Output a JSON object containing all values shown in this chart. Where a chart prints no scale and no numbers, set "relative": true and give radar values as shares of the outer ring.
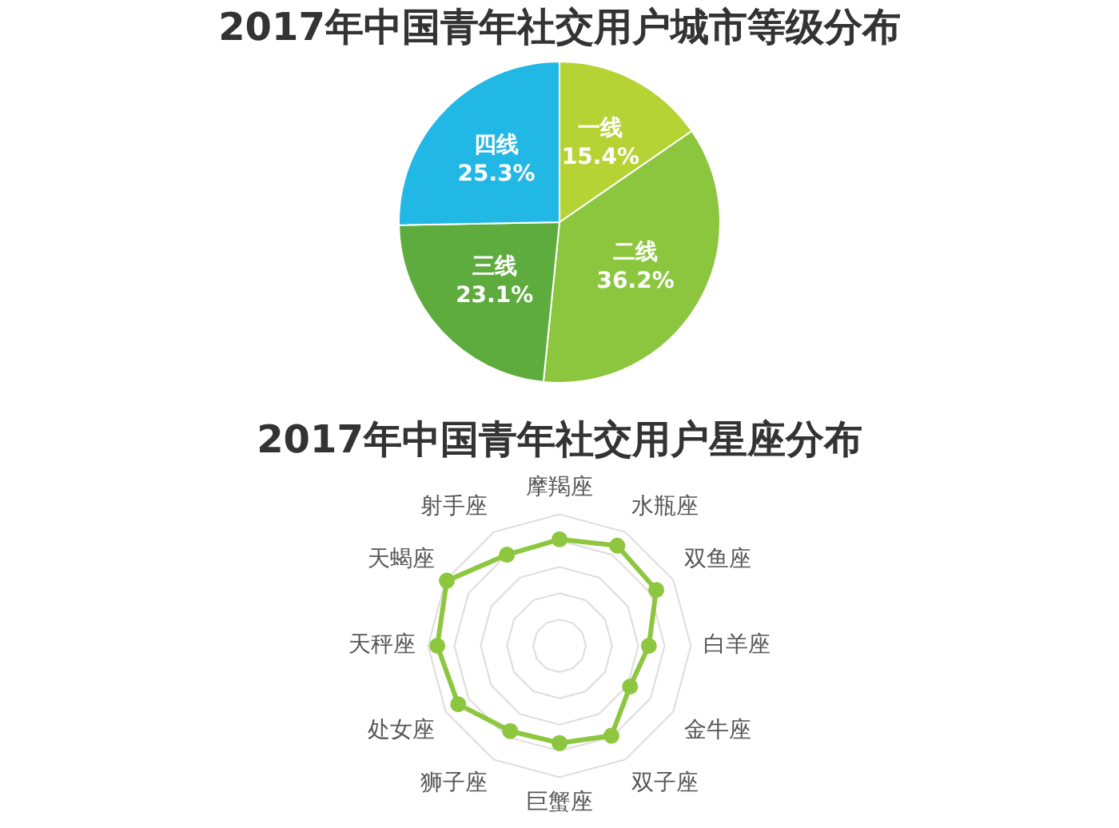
{
  "chart_data": [
    {
      "type": "pie",
      "title": "2017年中国青年社交用户城市等级分布",
      "categories": [
        "一线",
        "二线",
        "三线",
        "四线"
      ],
      "values": [
        15.4,
        36.2,
        23.1,
        25.3
      ],
      "colors": [
        "#b5d334",
        "#8cc63f",
        "#5eab3e",
        "#22b8e6"
      ],
      "value_labels": [
        "15.4%",
        "36.2%",
        "23.1%",
        "25.3%"
      ],
      "legend": false
    },
    {
      "type": "radar",
      "title": "2017年中国青年社交用户星座分布",
      "categories": [
        "摩羯座",
        "水瓶座",
        "双鱼座",
        "白羊座",
        "金牛座",
        "双子座",
        "巨蟹座",
        "狮子座",
        "处女座",
        "天秤座",
        "天蝎座",
        "射手座"
      ],
      "relative": true,
      "marker": "circle",
      "legend": false,
      "series": [
        {
          "color": "#8dc63f",
          "values": [
            0.81,
            0.88,
            0.85,
            0.68,
            0.62,
            0.79,
            0.74,
            0.75,
            0.89,
            0.93,
            0.99,
            0.8
          ]
        }
      ]
    }
  ]
}
